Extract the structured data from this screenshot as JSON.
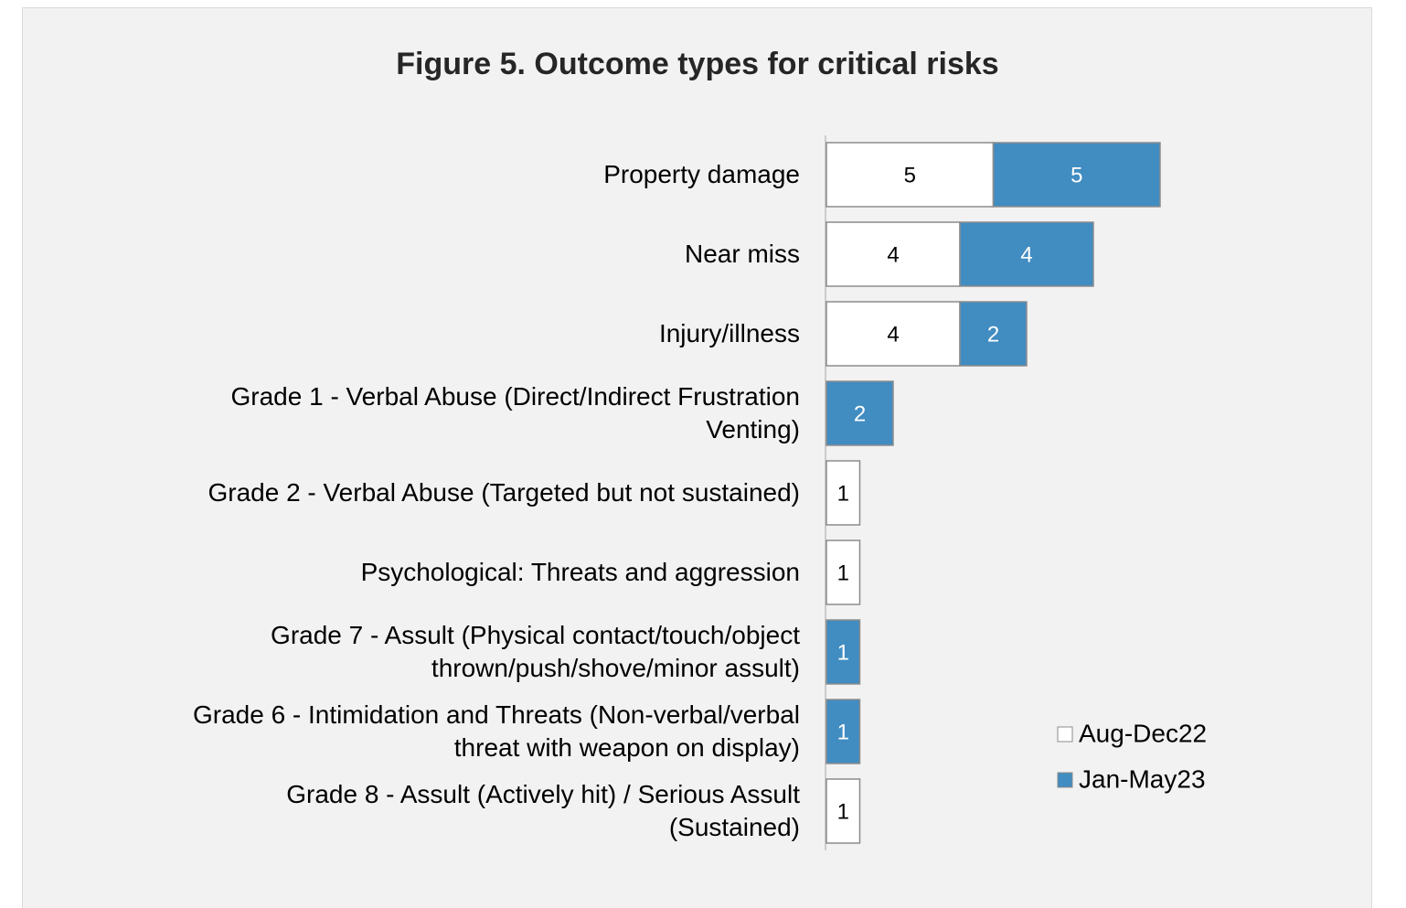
{
  "chart_data": {
    "type": "stacked-barh",
    "title": "Figure 5. Outcome types for critical risks",
    "categories": [
      "Property damage",
      "Near miss",
      "Injury/illness",
      "Grade 1 - Verbal Abuse (Direct/Indirect Frustration Venting)",
      "Grade 2 - Verbal Abuse (Targeted but not sustained)",
      "Psychological: Threats and aggression",
      "Grade 7 - Assult (Physical contact/touch/object thrown/push/shove/minor assult)",
      "Grade 6 - Intimidation and Threats (Non-verbal/verbal threat with weapon on display)",
      "Grade 8 - Assult (Actively hit) / Serious Assult (Sustained)"
    ],
    "series": [
      {
        "name": "Aug-Dec22",
        "color": "#ffffff",
        "values": [
          5,
          4,
          4,
          null,
          1,
          1,
          null,
          null,
          1
        ]
      },
      {
        "name": "Jan-May23",
        "color": "#418cc1",
        "values": [
          5,
          4,
          2,
          2,
          null,
          null,
          1,
          1,
          null
        ]
      }
    ],
    "legend": "right"
  }
}
